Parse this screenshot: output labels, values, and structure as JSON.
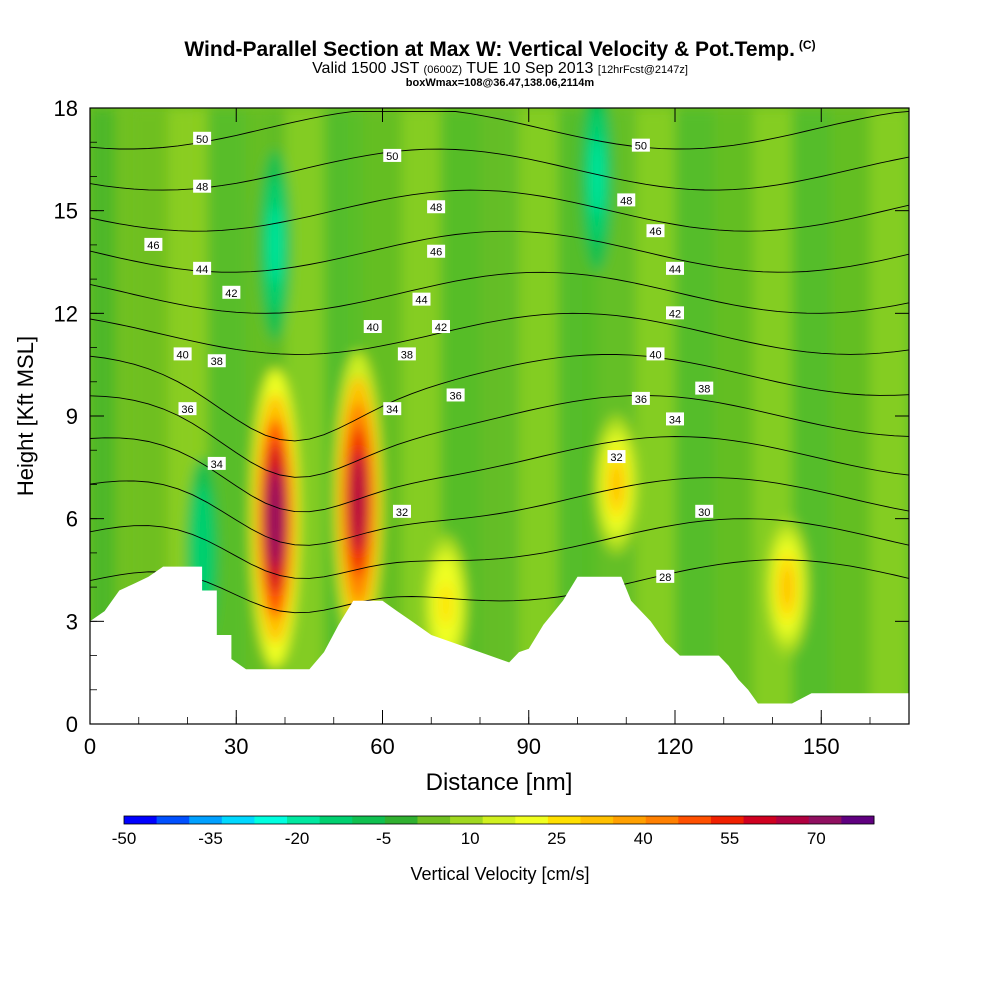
{
  "title": "Wind-Parallel Section at Max W: Vertical Velocity & Pot.Temp.",
  "copyright_mark": "(C)",
  "subtitle_main": "Valid 1500 JST",
  "subtitle_z": "(0600Z)",
  "subtitle_date": "TUE 10 Sep 2013",
  "subtitle_fcst": "[12hrFcst@2147z]",
  "subsubtitle": "boxWmax=108@36.47,138.06,2114m",
  "chart_data": {
    "type": "heatmap",
    "xlabel": "Distance [nm]",
    "ylabel": "Height [Kft MSL]",
    "xlim": [
      0,
      168
    ],
    "ylim": [
      0,
      18
    ],
    "xticks": [
      0,
      30,
      60,
      90,
      120,
      150
    ],
    "yticks": [
      0,
      3,
      6,
      9,
      12,
      15,
      18
    ],
    "colorbar": {
      "label": "Vertical Velocity [cm/s]",
      "range": [
        -50,
        80
      ],
      "tick_values": [
        -50,
        -35,
        -20,
        -5,
        10,
        25,
        40,
        55,
        70
      ],
      "colors": [
        "#0000ff",
        "#0050ff",
        "#00a0ff",
        "#00d8ff",
        "#00ffe0",
        "#00e8a0",
        "#00d070",
        "#10c050",
        "#30b030",
        "#70c020",
        "#a0d820",
        "#d0f020",
        "#f0ff20",
        "#ffe000",
        "#ffc000",
        "#ffa000",
        "#ff8000",
        "#ff5000",
        "#f02000",
        "#d00020",
        "#b00040",
        "#901060",
        "#600080"
      ]
    },
    "updrafts": [
      {
        "x": 38,
        "y": 6.0,
        "peak": 72
      },
      {
        "x": 55,
        "y": 6.5,
        "peak": 65
      },
      {
        "x": 108,
        "y": 7.0,
        "peak": 32
      },
      {
        "x": 143,
        "y": 4.0,
        "peak": 30
      },
      {
        "x": 73,
        "y": 3.5,
        "peak": 28
      }
    ],
    "downdrafts": [
      {
        "x": 38,
        "y": 14.0,
        "peak": -20
      },
      {
        "x": 104,
        "y": 16.0,
        "peak": -20
      },
      {
        "x": 23,
        "y": 5.0,
        "peak": -15
      }
    ],
    "theta_contours": [
      28,
      30,
      32,
      34,
      36,
      38,
      40,
      42,
      44,
      46,
      48,
      50
    ],
    "terrain": [
      {
        "x": 0,
        "y": 3.0
      },
      {
        "x": 3,
        "y": 3.3
      },
      {
        "x": 6,
        "y": 3.9
      },
      {
        "x": 9,
        "y": 4.1
      },
      {
        "x": 12,
        "y": 4.3
      },
      {
        "x": 15,
        "y": 4.6
      },
      {
        "x": 23,
        "y": 4.6
      },
      {
        "x": 23,
        "y": 3.9
      },
      {
        "x": 26,
        "y": 3.9
      },
      {
        "x": 26,
        "y": 2.6
      },
      {
        "x": 29,
        "y": 2.6
      },
      {
        "x": 29,
        "y": 1.9
      },
      {
        "x": 32,
        "y": 1.6
      },
      {
        "x": 45,
        "y": 1.6
      },
      {
        "x": 48,
        "y": 2.1
      },
      {
        "x": 51,
        "y": 2.9
      },
      {
        "x": 54,
        "y": 3.6
      },
      {
        "x": 60,
        "y": 3.6
      },
      {
        "x": 63,
        "y": 3.3
      },
      {
        "x": 66,
        "y": 3.0
      },
      {
        "x": 70,
        "y": 2.6
      },
      {
        "x": 76,
        "y": 2.3
      },
      {
        "x": 80,
        "y": 2.1
      },
      {
        "x": 86,
        "y": 1.8
      },
      {
        "x": 88,
        "y": 2.1
      },
      {
        "x": 90,
        "y": 2.2
      },
      {
        "x": 93,
        "y": 2.9
      },
      {
        "x": 97,
        "y": 3.6
      },
      {
        "x": 100,
        "y": 4.3
      },
      {
        "x": 109,
        "y": 4.3
      },
      {
        "x": 111,
        "y": 3.6
      },
      {
        "x": 115,
        "y": 3.0
      },
      {
        "x": 118,
        "y": 2.4
      },
      {
        "x": 121,
        "y": 2.0
      },
      {
        "x": 129,
        "y": 2.0
      },
      {
        "x": 131,
        "y": 1.7
      },
      {
        "x": 133,
        "y": 1.3
      },
      {
        "x": 135,
        "y": 1.0
      },
      {
        "x": 137,
        "y": 0.6
      },
      {
        "x": 144,
        "y": 0.6
      },
      {
        "x": 148,
        "y": 0.9
      },
      {
        "x": 152,
        "y": 0.9
      },
      {
        "x": 168,
        "y": 0.9
      }
    ],
    "contour_labels": [
      {
        "text": "50",
        "x": 23,
        "y": 17.1
      },
      {
        "text": "48",
        "x": 23,
        "y": 15.7
      },
      {
        "text": "46",
        "x": 13,
        "y": 14.0
      },
      {
        "text": "44",
        "x": 23,
        "y": 13.3
      },
      {
        "text": "42",
        "x": 29,
        "y": 12.6
      },
      {
        "text": "40",
        "x": 19,
        "y": 10.8
      },
      {
        "text": "38",
        "x": 26,
        "y": 10.6
      },
      {
        "text": "36",
        "x": 20,
        "y": 9.2
      },
      {
        "text": "34",
        "x": 26,
        "y": 7.6
      },
      {
        "text": "50",
        "x": 62,
        "y": 16.6
      },
      {
        "text": "48",
        "x": 71,
        "y": 15.1
      },
      {
        "text": "46",
        "x": 71,
        "y": 13.8
      },
      {
        "text": "44",
        "x": 68,
        "y": 12.4
      },
      {
        "text": "42",
        "x": 72,
        "y": 11.6
      },
      {
        "text": "40",
        "x": 58,
        "y": 11.6
      },
      {
        "text": "38",
        "x": 65,
        "y": 10.8
      },
      {
        "text": "36",
        "x": 75,
        "y": 9.6
      },
      {
        "text": "34",
        "x": 62,
        "y": 9.2
      },
      {
        "text": "32",
        "x": 64,
        "y": 6.2
      },
      {
        "text": "50",
        "x": 113,
        "y": 16.9
      },
      {
        "text": "48",
        "x": 110,
        "y": 15.3
      },
      {
        "text": "46",
        "x": 116,
        "y": 14.4
      },
      {
        "text": "44",
        "x": 120,
        "y": 13.3
      },
      {
        "text": "42",
        "x": 120,
        "y": 12.0
      },
      {
        "text": "40",
        "x": 116,
        "y": 10.8
      },
      {
        "text": "38",
        "x": 126,
        "y": 9.8
      },
      {
        "text": "36",
        "x": 113,
        "y": 9.5
      },
      {
        "text": "34",
        "x": 120,
        "y": 8.9
      },
      {
        "text": "32",
        "x": 108,
        "y": 7.8
      },
      {
        "text": "30",
        "x": 126,
        "y": 6.2
      },
      {
        "text": "28",
        "x": 118,
        "y": 4.3
      }
    ]
  }
}
